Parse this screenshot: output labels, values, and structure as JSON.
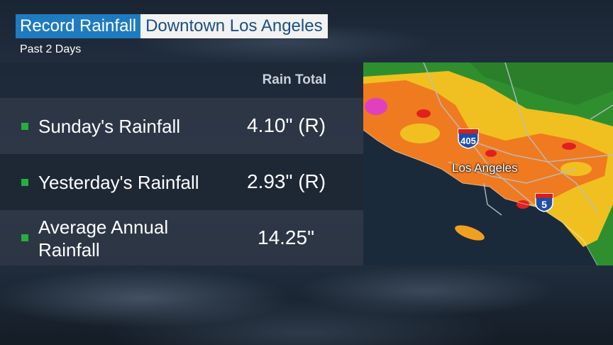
{
  "header": {
    "title": "Record Rainfall",
    "location": "Downtown Los Angeles",
    "subtitle": "Past 2 Days"
  },
  "table": {
    "column_header": "Rain Total",
    "rows": [
      {
        "label": "Sunday's Rainfall",
        "value": "4.10\" (R)"
      },
      {
        "label": "Yesterday's Rainfall",
        "value": "2.93\" (R)"
      },
      {
        "label": "Average Annual Rainfall",
        "value": "14.25\""
      }
    ]
  },
  "map": {
    "city_label": "Los Angeles",
    "shields": [
      {
        "number": "405",
        "icon": "interstate-shield-icon"
      },
      {
        "number": "5",
        "icon": "interstate-shield-icon"
      }
    ],
    "colors": {
      "ocean": "#1b2a3a",
      "green": "#2f8f2f",
      "yellow": "#f0c020",
      "orange": "#f07a20",
      "red": "#e02020",
      "magenta": "#e040c0",
      "bullet": "#27ae3d"
    }
  }
}
